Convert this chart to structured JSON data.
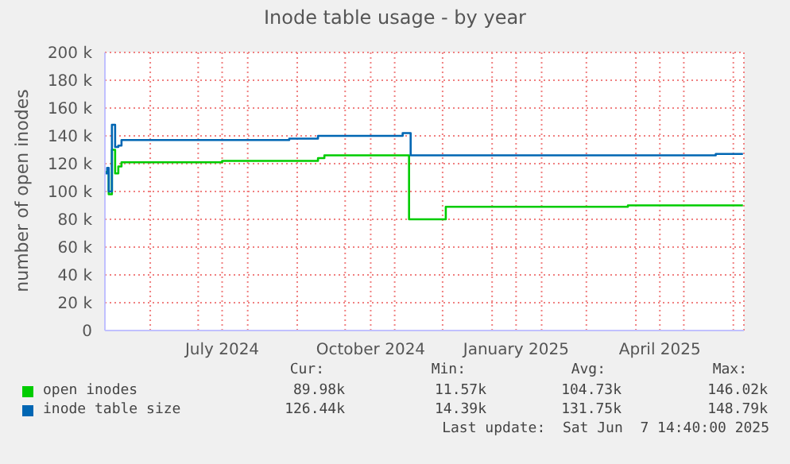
{
  "chart_data": {
    "type": "step",
    "title": "Inode table usage - by year",
    "ylabel": "number of open inodes",
    "xlim": [
      "2024-05-03T14:40",
      "2025-06-07T14:40"
    ],
    "xticks": [
      {
        "value": "2024-06-01",
        "label": null
      },
      {
        "value": "2024-07-01",
        "label": null
      },
      {
        "value": "2024-07-16",
        "label": "July 2024"
      },
      {
        "value": "2024-08-01",
        "label": null
      },
      {
        "value": "2024-09-01",
        "label": null
      },
      {
        "value": "2024-10-01",
        "label": null
      },
      {
        "value": "2024-10-17",
        "label": "October 2024"
      },
      {
        "value": "2024-11-01",
        "label": null
      },
      {
        "value": "2024-12-01",
        "label": null
      },
      {
        "value": "2025-01-01",
        "label": null
      },
      {
        "value": "2025-01-16",
        "label": "January 2025"
      },
      {
        "value": "2025-02-01",
        "label": null
      },
      {
        "value": "2025-03-01",
        "label": null
      },
      {
        "value": "2025-04-01",
        "label": null
      },
      {
        "value": "2025-04-16",
        "label": "April 2025"
      },
      {
        "value": "2025-05-01",
        "label": null
      },
      {
        "value": "2025-06-01",
        "label": null
      }
    ],
    "ylim": [
      0,
      200000
    ],
    "yticks": [
      {
        "value": 0,
        "label": "0"
      },
      {
        "value": 20000,
        "label": "20 k"
      },
      {
        "value": 40000,
        "label": "40 k"
      },
      {
        "value": 60000,
        "label": "60 k"
      },
      {
        "value": 80000,
        "label": "80 k"
      },
      {
        "value": 100000,
        "label": "100 k"
      },
      {
        "value": 120000,
        "label": "120 k"
      },
      {
        "value": 140000,
        "label": "140 k"
      },
      {
        "value": 160000,
        "label": "160 k"
      },
      {
        "value": 180000,
        "label": "180 k"
      },
      {
        "value": 200000,
        "label": "200 k"
      }
    ],
    "grid": true,
    "legend": "bottom",
    "series": [
      {
        "name": "open inodes",
        "color": "#00cc00",
        "x": [
          "2024-05-04",
          "2024-05-06",
          "2024-05-08",
          "2024-05-10",
          "2024-05-12",
          "2024-05-14",
          "2024-07-16",
          "2024-09-14",
          "2024-09-18",
          "2024-11-10",
          "2024-12-03",
          "2025-03-27",
          "2025-06-07"
        ],
        "values": [
          114000,
          98000,
          130000,
          113000,
          118000,
          121000,
          122000,
          124000,
          126000,
          80000,
          89000,
          90000,
          90000
        ]
      },
      {
        "name": "inode table size",
        "color": "#0066b3",
        "x": [
          "2024-05-04",
          "2024-05-05",
          "2024-05-06",
          "2024-05-08",
          "2024-05-10",
          "2024-05-12",
          "2024-05-14",
          "2024-08-27",
          "2024-09-14",
          "2024-11-06",
          "2024-11-11",
          "2025-05-21",
          "2025-06-07"
        ],
        "values": [
          113000,
          117000,
          100000,
          148000,
          132000,
          133000,
          137000,
          138000,
          140000,
          142000,
          126000,
          127000,
          127000
        ]
      }
    ],
    "annotations": [
      "Cur:",
      "Min:",
      "Avg:",
      "Max:",
      "89.98k",
      "11.57k",
      "104.73k",
      "146.02k",
      "126.44k",
      "14.39k",
      "131.75k",
      "148.79k",
      "Last update:  Sat Jun  7 14:40:00 2025"
    ]
  }
}
